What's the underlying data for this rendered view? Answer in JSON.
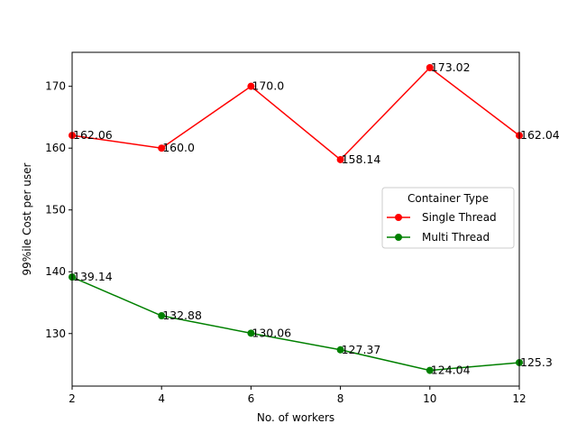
{
  "chart_data": {
    "type": "line",
    "xlabel": "No. of workers",
    "ylabel": "99%ile Cost per user",
    "x": [
      2,
      4,
      6,
      8,
      10,
      12
    ],
    "xlim": [
      2,
      12
    ],
    "ylim": [
      121.5,
      175.5
    ],
    "xticks": [
      "2",
      "4",
      "6",
      "8",
      "10",
      "12"
    ],
    "yticks": [
      "130",
      "140",
      "150",
      "160",
      "170"
    ],
    "grid": false,
    "legend": {
      "title": "Container Type",
      "placement": "center-right"
    },
    "series": [
      {
        "name": "Single Thread",
        "color": "#ff0000",
        "values": [
          162.06,
          160.0,
          170.0,
          158.14,
          173.02,
          162.04
        ],
        "labels": [
          "162.06",
          "160.0",
          "170.0",
          "158.14",
          "173.02",
          "162.04"
        ]
      },
      {
        "name": "Multi Thread",
        "color": "#008000",
        "values": [
          139.14,
          132.88,
          130.06,
          127.37,
          124.04,
          125.3
        ],
        "labels": [
          "139.14",
          "132.88",
          "130.06",
          "127.37",
          "124.04",
          "125.3"
        ]
      }
    ]
  }
}
